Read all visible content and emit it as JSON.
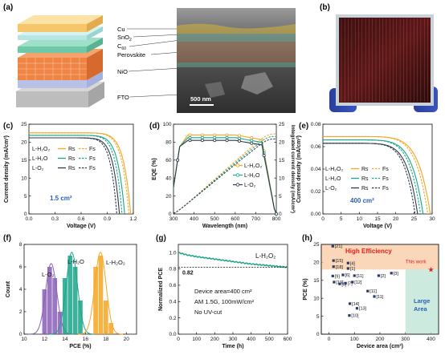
{
  "panels": {
    "a": {
      "tag": "(a)",
      "layers": [
        "Cu",
        "SnO",
        "C",
        "Perovskite",
        "NiO",
        "FTO"
      ],
      "sub_sno": "2",
      "sub_c": "60",
      "scalebar": "500 nm"
    },
    "b": {
      "tag": "(b)"
    },
    "c": {
      "tag": "(c)",
      "annotation": "1.5 cm²",
      "legend": [
        {
          "label": "L-H₂O₂",
          "rs": "Rs",
          "fs": "Fs"
        },
        {
          "label": "L-H₂O",
          "rs": "Rs",
          "fs": "Fs"
        },
        {
          "label": "L-O₂",
          "rs": "Rs",
          "fs": "Fs"
        }
      ]
    },
    "d": {
      "tag": "(d)",
      "legend": [
        "L-H₂O₂",
        "L-H₂O",
        "L-O₂"
      ]
    },
    "e": {
      "tag": "(e)",
      "annotation": "400 cm²",
      "legend": [
        {
          "label": "L-H₂O₂",
          "rs": "Rs",
          "fs": "Fs"
        },
        {
          "label": "L-H₂O",
          "rs": "Rs",
          "fs": "Fs"
        },
        {
          "label": "L-O₂",
          "rs": "Rs",
          "fs": "Fs"
        }
      ]
    },
    "f": {
      "tag": "(f)",
      "labels": [
        "L-O₂",
        "L-H₂O",
        "L-H₂O₂"
      ]
    },
    "g": {
      "tag": "(g)",
      "series_label": "L-H₂O₂",
      "ref_value": "0.82",
      "notes": [
        "Device area=400 cm²",
        "AM 1.5G, 100mW/cm²",
        "No UV-cut"
      ]
    },
    "h": {
      "tag": "(h)",
      "region_high": "High Efficiency",
      "region_large": [
        "Large",
        "Area"
      ],
      "this_work": "This work"
    }
  },
  "colors": {
    "h2o2": "#f5a623",
    "h2o": "#1aa58a",
    "o2": "#2b3a4a",
    "bar_o2": "#8a5fb8",
    "accent_red": "#e02020"
  },
  "chart_data": [
    {
      "type": "line",
      "panel": "c",
      "xlabel": "Voltage (V)",
      "ylabel": "Current density (mA/cm²)",
      "xlim": [
        0,
        1.2
      ],
      "ylim": [
        0,
        25
      ],
      "xticks": [
        "0.0",
        "0.3",
        "0.6",
        "0.9",
        "1.2"
      ],
      "yticks": [
        "0",
        "5",
        "10",
        "15",
        "20",
        "25"
      ],
      "series": [
        {
          "name": "L-H₂O₂ Rs",
          "isc": 22.6,
          "voc": 1.17
        },
        {
          "name": "L-H₂O₂ Fs",
          "isc": 22.6,
          "voc": 1.15
        },
        {
          "name": "L-H₂O Rs",
          "isc": 21.9,
          "voc": 1.1
        },
        {
          "name": "L-H₂O Fs",
          "isc": 21.9,
          "voc": 1.07
        },
        {
          "name": "L-O₂ Rs",
          "isc": 21.2,
          "voc": 1.04
        },
        {
          "name": "L-O₂ Fs",
          "isc": 21.2,
          "voc": 1.01
        }
      ]
    },
    {
      "type": "line",
      "panel": "d",
      "xlabel": "Wavelength (nm)",
      "ylabel": "EQE (%)",
      "ylabel2": "Integrated current density (mA/cm²)",
      "xlim": [
        300,
        800
      ],
      "ylim": [
        0,
        100
      ],
      "y2lim": [
        0,
        25
      ],
      "xticks": [
        "300",
        "400",
        "500",
        "600",
        "700",
        "800"
      ],
      "yticks": [
        "0",
        "20",
        "40",
        "60",
        "80",
        "100"
      ],
      "y2ticks": [
        "0",
        "5",
        "10",
        "15",
        "20",
        "25"
      ],
      "series": [
        {
          "name": "L-H₂O₂",
          "plateau": 88,
          "integrated_end": 22.3
        },
        {
          "name": "L-H₂O",
          "plateau": 85,
          "integrated_end": 21.6
        },
        {
          "name": "L-O₂",
          "plateau": 82,
          "integrated_end": 20.9
        }
      ]
    },
    {
      "type": "line",
      "panel": "e",
      "xlabel": "Voltage (V)",
      "ylabel": "Current density (mA/cm²)",
      "xlim": [
        0,
        30
      ],
      "ylim": [
        0,
        0.08
      ],
      "xticks": [
        "0",
        "5",
        "10",
        "15",
        "20",
        "25",
        "30"
      ],
      "yticks": [
        "0.00",
        "0.02",
        "0.04",
        "0.06",
        "0.08"
      ],
      "series": [
        {
          "name": "L-H₂O₂ Rs",
          "isc": 0.069,
          "voc": 29.5
        },
        {
          "name": "L-H₂O₂ Fs",
          "isc": 0.069,
          "voc": 28.8
        },
        {
          "name": "L-H₂O Rs",
          "isc": 0.066,
          "voc": 27.5
        },
        {
          "name": "L-H₂O Fs",
          "isc": 0.066,
          "voc": 26.8
        },
        {
          "name": "L-O₂ Rs",
          "isc": 0.063,
          "voc": 26.0
        },
        {
          "name": "L-O₂ Fs",
          "isc": 0.063,
          "voc": 25.3
        }
      ]
    },
    {
      "type": "bar",
      "panel": "f",
      "xlabel": "PCE (%)",
      "ylabel": "Count",
      "xlim": [
        10,
        21
      ],
      "ylim": [
        0,
        8
      ],
      "xticks": [
        "10",
        "12",
        "14",
        "16",
        "18",
        "20"
      ],
      "yticks": [
        "0",
        "2",
        "4",
        "6",
        "8"
      ],
      "series": [
        {
          "name": "L-O₂",
          "bins": [
            12.0,
            12.5,
            13.0,
            13.5
          ],
          "counts": [
            4,
            6,
            5,
            2
          ]
        },
        {
          "name": "L-H₂O",
          "bins": [
            14.0,
            14.5,
            15.0,
            15.5
          ],
          "counts": [
            5,
            7,
            6,
            3
          ]
        },
        {
          "name": "L-H₂O₂",
          "bins": [
            17.0,
            17.5,
            18.0,
            18.5
          ],
          "counts": [
            6,
            7,
            3,
            1
          ]
        }
      ]
    },
    {
      "type": "line",
      "panel": "g",
      "xlabel": "Time (h)",
      "ylabel": "Normalized PCE",
      "xlim": [
        0,
        600
      ],
      "ylim": [
        0,
        1.1
      ],
      "xticks": [
        "0",
        "100",
        "200",
        "300",
        "400",
        "500",
        "600"
      ],
      "yticks": [
        "0.0",
        "0.2",
        "0.4",
        "0.6",
        "0.8",
        "1.0"
      ],
      "series": [
        {
          "name": "L-H₂O₂",
          "x": [
            0,
            50,
            100,
            200,
            300,
            400,
            500,
            600
          ],
          "y": [
            1.0,
            0.97,
            0.95,
            0.92,
            0.89,
            0.86,
            0.84,
            0.82
          ]
        }
      ],
      "reference_line": 0.82
    },
    {
      "type": "scatter",
      "panel": "h",
      "xlabel": "Device area (cm²)",
      "ylabel": "PCE (%)",
      "xlim": [
        -30,
        430
      ],
      "ylim": [
        0,
        25
      ],
      "xticks": [
        "0",
        "100",
        "200",
        "300",
        "400"
      ],
      "yticks": [
        "0",
        "5",
        "10",
        "15",
        "20",
        "25"
      ],
      "points": [
        {
          "x": 15,
          "y": 24.5,
          "label": "[21]"
        },
        {
          "x": 18,
          "y": 20.5,
          "label": "[15]"
        },
        {
          "x": 75,
          "y": 19.8,
          "label": "[4]"
        },
        {
          "x": 18,
          "y": 18.8,
          "label": "[18]"
        },
        {
          "x": 75,
          "y": 18.3,
          "label": "[1]"
        },
        {
          "x": 15,
          "y": 16.2,
          "label": "[9]"
        },
        {
          "x": 55,
          "y": 16.5,
          "label": "[6]"
        },
        {
          "x": 100,
          "y": 16.3,
          "label": "[11]"
        },
        {
          "x": 195,
          "y": 16.3,
          "label": "[2]"
        },
        {
          "x": 245,
          "y": 17.0,
          "label": "[3]"
        },
        {
          "x": 20,
          "y": 14.5,
          "label": "[19]"
        },
        {
          "x": 42,
          "y": 14.0,
          "label": "[8]"
        },
        {
          "x": 65,
          "y": 14.2,
          "label": "[7]"
        },
        {
          "x": 92,
          "y": 14.5,
          "label": "[12]"
        },
        {
          "x": 152,
          "y": 12.0,
          "label": "[11]"
        },
        {
          "x": 178,
          "y": 10.5,
          "label": "[11]"
        },
        {
          "x": 82,
          "y": 8.5,
          "label": "[14]"
        },
        {
          "x": 110,
          "y": 7.2,
          "label": "[13]"
        },
        {
          "x": 80,
          "y": 5.2,
          "label": "[10]"
        },
        {
          "x": 400,
          "y": 18.0,
          "label": "This work",
          "highlight": true
        }
      ]
    }
  ]
}
